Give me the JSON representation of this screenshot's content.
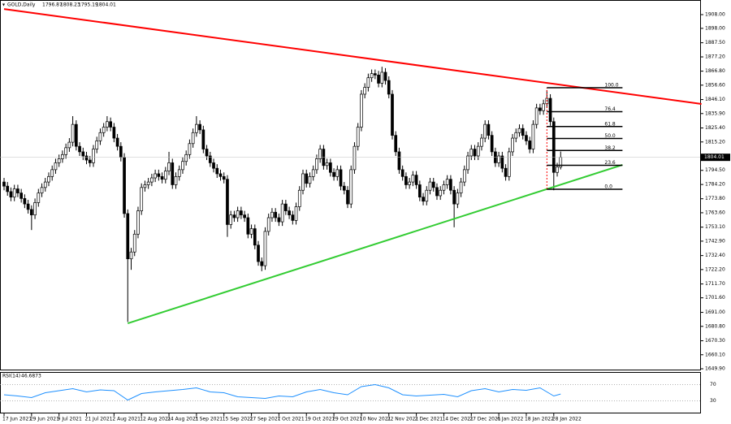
{
  "chart_data": {
    "type": "candlestick",
    "symbol": "GOLD,Daily",
    "ylim": [
      1649.3,
      1918.66
    ],
    "yticks": [
      {
        "value": 1908,
        "label": "1908.00"
      },
      {
        "value": 1898,
        "label": "1898.00"
      },
      {
        "value": 1887.5,
        "label": "1887.50"
      },
      {
        "value": 1877.2,
        "label": "1877.20"
      },
      {
        "value": 1866.8,
        "label": "1866.80"
      },
      {
        "value": 1856.6,
        "label": "1856.60"
      },
      {
        "value": 1846.1,
        "label": "1846.10"
      },
      {
        "value": 1835.9,
        "label": "1835.90"
      },
      {
        "value": 1825.4,
        "label": "1825.40"
      },
      {
        "value": 1815.2,
        "label": "1815.20"
      },
      {
        "value": 1794.5,
        "label": "1794.50"
      },
      {
        "value": 1784.2,
        "label": "1784.20"
      },
      {
        "value": 1773.8,
        "label": "1773.80"
      },
      {
        "value": 1763.6,
        "label": "1763.60"
      },
      {
        "value": 1753.1,
        "label": "1753.10"
      },
      {
        "value": 1742.9,
        "label": "1742.90"
      },
      {
        "value": 1732.4,
        "label": "1732.40"
      },
      {
        "value": 1722.2,
        "label": "1722.20"
      },
      {
        "value": 1711.7,
        "label": "1711.70"
      },
      {
        "value": 1701.6,
        "label": "1701.60"
      },
      {
        "value": 1691,
        "label": "1691.00"
      },
      {
        "value": 1680.8,
        "label": "1680.80"
      },
      {
        "value": 1670.3,
        "label": "1670.30"
      },
      {
        "value": 1660.1,
        "label": "1660.10"
      },
      {
        "value": 1649.9,
        "label": "1649.90"
      }
    ],
    "xticks": [
      {
        "value": 0,
        "label": "17 Jun 2021"
      },
      {
        "value": 8,
        "label": "29 Jun 2021"
      },
      {
        "value": 16,
        "label": "9 Jul 2021"
      },
      {
        "value": 24,
        "label": "21 Jul 2021"
      },
      {
        "value": 32,
        "label": "2 Aug 2021"
      },
      {
        "value": 40,
        "label": "12 Aug 2021"
      },
      {
        "value": 48,
        "label": "24 Aug 2021"
      },
      {
        "value": 56,
        "label": "3 Sep 2021"
      },
      {
        "value": 64,
        "label": "15 Sep 2021"
      },
      {
        "value": 72,
        "label": "27 Sep 2021"
      },
      {
        "value": 80,
        "label": "7 Oct 2021"
      },
      {
        "value": 88,
        "label": "19 Oct 2021"
      },
      {
        "value": 96,
        "label": "29 Oct 2021"
      },
      {
        "value": 104,
        "label": "10 Nov 2021"
      },
      {
        "value": 112,
        "label": "22 Nov 2021"
      },
      {
        "value": 120,
        "label": "2 Dec 2021"
      },
      {
        "value": 128,
        "label": "14 Dec 2021"
      },
      {
        "value": 136,
        "label": "27 Dec 2021"
      },
      {
        "value": 144,
        "label": "6 Jan 2022"
      },
      {
        "value": 152,
        "label": "18 Jan 2022"
      },
      {
        "value": 160,
        "label": "28 Jan 2022"
      }
    ],
    "open": [
      1786,
      1783,
      1779,
      1775,
      1781,
      1778,
      1774,
      1770,
      1766,
      1762,
      1771,
      1778,
      1782,
      1786,
      1790,
      1795,
      1800,
      1803,
      1806,
      1811,
      1815,
      1828,
      1812,
      1808,
      1805,
      1802,
      1800,
      1810,
      1816,
      1822,
      1826,
      1830,
      1826,
      1818,
      1812,
      1804,
      1763,
      1730,
      1735,
      1748,
      1765,
      1782,
      1784,
      1786,
      1789,
      1792,
      1790,
      1788,
      1794,
      1800,
      1784,
      1790,
      1795,
      1801,
      1806,
      1814,
      1822,
      1828,
      1824,
      1810,
      1805,
      1800,
      1796,
      1792,
      1790,
      1788,
      1755,
      1762,
      1760,
      1765,
      1762,
      1760,
      1748,
      1752,
      1740,
      1728,
      1725,
      1750,
      1760,
      1764,
      1760,
      1757,
      1770,
      1765,
      1762,
      1758,
      1768,
      1780,
      1792,
      1785,
      1790,
      1795,
      1803,
      1810,
      1798,
      1800,
      1793,
      1790,
      1795,
      1783,
      1780,
      1770,
      1795,
      1812,
      1826,
      1850,
      1855,
      1862,
      1865,
      1864,
      1858,
      1866,
      1860,
      1850,
      1820,
      1808,
      1795,
      1790,
      1784,
      1786,
      1791,
      1784,
      1775,
      1772,
      1780,
      1786,
      1782,
      1776,
      1780,
      1784,
      1788,
      1780,
      1770,
      1778,
      1786,
      1795,
      1805,
      1810,
      1805,
      1812,
      1818,
      1828,
      1820,
      1808,
      1800,
      1805,
      1796,
      1790,
      1808,
      1818,
      1822,
      1825,
      1820,
      1816,
      1810,
      1828,
      1840,
      1838,
      1843,
      1847,
      1830,
      1793,
      1796.87
    ],
    "high": [
      1789,
      1786,
      1782,
      1784,
      1784,
      1781,
      1777,
      1773,
      1769,
      1774,
      1781,
      1785,
      1789,
      1793,
      1798,
      1803,
      1806,
      1809,
      1814,
      1818,
      1834,
      1831,
      1815,
      1811,
      1808,
      1805,
      1813,
      1819,
      1825,
      1829,
      1834,
      1833,
      1829,
      1821,
      1815,
      1807,
      1766,
      1738,
      1751,
      1768,
      1785,
      1787,
      1789,
      1792,
      1795,
      1795,
      1793,
      1797,
      1808,
      1803,
      1793,
      1798,
      1804,
      1809,
      1817,
      1825,
      1834,
      1831,
      1827,
      1813,
      1808,
      1803,
      1799,
      1795,
      1793,
      1791,
      1765,
      1765,
      1768,
      1768,
      1765,
      1763,
      1755,
      1755,
      1743,
      1731,
      1753,
      1763,
      1767,
      1767,
      1763,
      1773,
      1773,
      1768,
      1765,
      1771,
      1783,
      1795,
      1795,
      1793,
      1798,
      1806,
      1813,
      1813,
      1803,
      1803,
      1796,
      1798,
      1798,
      1786,
      1783,
      1798,
      1815,
      1829,
      1853,
      1858,
      1865,
      1868,
      1868,
      1867,
      1870,
      1869,
      1863,
      1853,
      1823,
      1811,
      1798,
      1793,
      1789,
      1794,
      1794,
      1787,
      1778,
      1783,
      1789,
      1789,
      1785,
      1783,
      1787,
      1791,
      1791,
      1783,
      1781,
      1789,
      1798,
      1808,
      1813,
      1813,
      1815,
      1821,
      1831,
      1831,
      1823,
      1811,
      1808,
      1808,
      1799,
      1811,
      1821,
      1825,
      1828,
      1828,
      1823,
      1819,
      1831,
      1843,
      1843,
      1846,
      1853,
      1850,
      1833,
      1800,
      1808.23
    ],
    "low": [
      1780,
      1776,
      1772,
      1772,
      1775,
      1771,
      1767,
      1763,
      1751,
      1759,
      1768,
      1775,
      1779,
      1783,
      1787,
      1792,
      1797,
      1800,
      1803,
      1808,
      1812,
      1809,
      1805,
      1802,
      1799,
      1797,
      1797,
      1807,
      1813,
      1819,
      1823,
      1823,
      1815,
      1809,
      1801,
      1760,
      1684,
      1722,
      1732,
      1745,
      1762,
      1779,
      1781,
      1783,
      1786,
      1787,
      1785,
      1785,
      1791,
      1781,
      1781,
      1787,
      1792,
      1798,
      1803,
      1811,
      1819,
      1821,
      1807,
      1802,
      1797,
      1793,
      1789,
      1787,
      1785,
      1746,
      1752,
      1757,
      1757,
      1759,
      1757,
      1745,
      1745,
      1737,
      1725,
      1721,
      1722,
      1747,
      1757,
      1757,
      1754,
      1754,
      1762,
      1759,
      1755,
      1755,
      1765,
      1777,
      1782,
      1782,
      1787,
      1792,
      1800,
      1795,
      1795,
      1790,
      1787,
      1787,
      1780,
      1777,
      1767,
      1767,
      1792,
      1809,
      1823,
      1847,
      1852,
      1859,
      1861,
      1855,
      1855,
      1857,
      1847,
      1817,
      1805,
      1792,
      1787,
      1781,
      1781,
      1783,
      1781,
      1772,
      1769,
      1769,
      1777,
      1779,
      1773,
      1773,
      1777,
      1781,
      1777,
      1753,
      1767,
      1775,
      1783,
      1792,
      1802,
      1802,
      1802,
      1809,
      1815,
      1817,
      1805,
      1797,
      1797,
      1793,
      1787,
      1787,
      1805,
      1815,
      1819,
      1817,
      1813,
      1807,
      1807,
      1825,
      1835,
      1835,
      1840,
      1827,
      1780,
      1790,
      1795.19
    ],
    "close": [
      1783,
      1779,
      1775,
      1781,
      1778,
      1774,
      1770,
      1766,
      1762,
      1771,
      1778,
      1782,
      1786,
      1790,
      1795,
      1800,
      1803,
      1806,
      1811,
      1815,
      1828,
      1812,
      1808,
      1805,
      1802,
      1800,
      1810,
      1816,
      1822,
      1826,
      1830,
      1826,
      1818,
      1812,
      1804,
      1763,
      1730,
      1735,
      1748,
      1765,
      1782,
      1784,
      1786,
      1789,
      1792,
      1790,
      1788,
      1794,
      1800,
      1784,
      1790,
      1795,
      1801,
      1806,
      1814,
      1822,
      1828,
      1824,
      1810,
      1805,
      1800,
      1796,
      1792,
      1790,
      1788,
      1755,
      1762,
      1760,
      1765,
      1762,
      1760,
      1748,
      1752,
      1740,
      1728,
      1725,
      1750,
      1760,
      1764,
      1760,
      1757,
      1770,
      1765,
      1762,
      1758,
      1768,
      1780,
      1792,
      1785,
      1790,
      1795,
      1803,
      1810,
      1798,
      1800,
      1793,
      1790,
      1795,
      1783,
      1780,
      1770,
      1795,
      1812,
      1826,
      1850,
      1855,
      1862,
      1865,
      1864,
      1858,
      1866,
      1860,
      1850,
      1820,
      1808,
      1795,
      1790,
      1784,
      1786,
      1791,
      1784,
      1775,
      1772,
      1780,
      1786,
      1782,
      1776,
      1780,
      1784,
      1788,
      1780,
      1770,
      1778,
      1786,
      1795,
      1805,
      1810,
      1805,
      1812,
      1818,
      1828,
      1820,
      1808,
      1800,
      1805,
      1796,
      1790,
      1808,
      1818,
      1822,
      1825,
      1820,
      1816,
      1810,
      1828,
      1840,
      1838,
      1843,
      1847,
      1830,
      1793,
      1797,
      1804.01
    ],
    "trendlines": [
      {
        "color": "#ff0000",
        "x": [
          0,
          203
        ],
        "y": [
          1912.1,
          1842.9
        ]
      },
      {
        "color": "#33cc33",
        "x": [
          36,
          180
        ],
        "y": [
          1683,
          1798.5
        ]
      }
    ],
    "fibonacci": {
      "start": 158,
      "end": 180,
      "low": 1780.7,
      "high": 1854.7,
      "levels": [
        {
          "value": 100,
          "label": "100.0"
        },
        {
          "value": 76.4,
          "label": "76.4"
        },
        {
          "value": 61.8,
          "label": "61.8"
        },
        {
          "value": 50,
          "label": "50.0"
        },
        {
          "value": 38.2,
          "label": "38.2"
        },
        {
          "value": 23.6,
          "label": "23.6"
        },
        {
          "value": 0,
          "label": "0.0"
        }
      ]
    },
    "rsi": {
      "name": "RSI(14)",
      "color": "#1e90ff",
      "ylim": [
        0,
        100
      ],
      "yticks": [
        70,
        30
      ],
      "x": [
        0,
        4,
        8,
        12,
        16,
        20,
        24,
        28,
        32,
        36,
        40,
        44,
        48,
        52,
        56,
        60,
        64,
        68,
        72,
        76,
        80,
        84,
        88,
        92,
        96,
        100,
        104,
        108,
        112,
        116,
        120,
        124,
        128,
        132,
        136,
        140,
        144,
        148,
        152,
        156,
        160,
        162
      ],
      "values": [
        45,
        42,
        38,
        50,
        55,
        60,
        52,
        57,
        55,
        32,
        48,
        52,
        55,
        58,
        62,
        52,
        50,
        40,
        38,
        36,
        42,
        40,
        52,
        58,
        50,
        45,
        65,
        70,
        62,
        45,
        42,
        44,
        46,
        40,
        55,
        60,
        52,
        58,
        56,
        62,
        42,
        46.6873
      ]
    }
  }
}
